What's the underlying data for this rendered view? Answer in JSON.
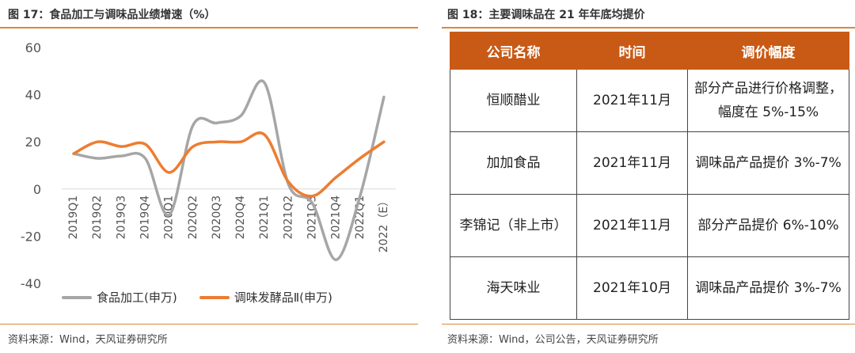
{
  "left": {
    "title": "图 17：食品加工与调味品业绩增速（%）",
    "source": "资料来源：Wind，天风证券研究所",
    "chart_data": {
      "type": "line",
      "categories": [
        "2019Q1",
        "2019Q2",
        "2019Q3",
        "2019Q4",
        "2020Q1",
        "2020Q2",
        "2020Q3",
        "2020Q4",
        "2021Q1",
        "2021Q2",
        "2021Q3",
        "2021Q4",
        "2022Q1",
        "2022（E）"
      ],
      "series": [
        {
          "name": "食品加工(申万)",
          "color": "#a6a6a6",
          "values": [
            15,
            13,
            14,
            13,
            -11,
            27,
            28,
            31,
            45,
            2,
            -6,
            -30,
            -3,
            39
          ]
        },
        {
          "name": "调味发酵品Ⅱ(申万)",
          "color": "#ed7d31",
          "values": [
            15,
            20,
            18,
            19,
            7,
            18,
            20,
            20,
            23,
            3,
            -3,
            5,
            13,
            20
          ]
        }
      ],
      "ylim": [
        -40,
        60
      ],
      "yticks": [
        60,
        40,
        20,
        0,
        -20,
        -40
      ],
      "grid": false,
      "legend": "bottom"
    }
  },
  "right": {
    "title": "图 18：主要调味品在 21 年年底均提价",
    "source": "资料来源：Wind，公司公告，天风证券研究所",
    "headers": [
      "公司名称",
      "时间",
      "调价幅度"
    ],
    "rows": [
      {
        "company": "恒顺醋业",
        "time": "2021年11月",
        "range": "部分产品进行价格调整，幅度在 5%-15%"
      },
      {
        "company": "加加食品",
        "time": "2021年11月",
        "range": "调味品产品提价 3%-7%"
      },
      {
        "company": "李锦记（非上市）",
        "time": "2021年11月",
        "range": "部分产品提价 6%-10%"
      },
      {
        "company": "海天味业",
        "time": "2021年10月",
        "range": "调味品产品提价 3%-7%"
      }
    ]
  }
}
